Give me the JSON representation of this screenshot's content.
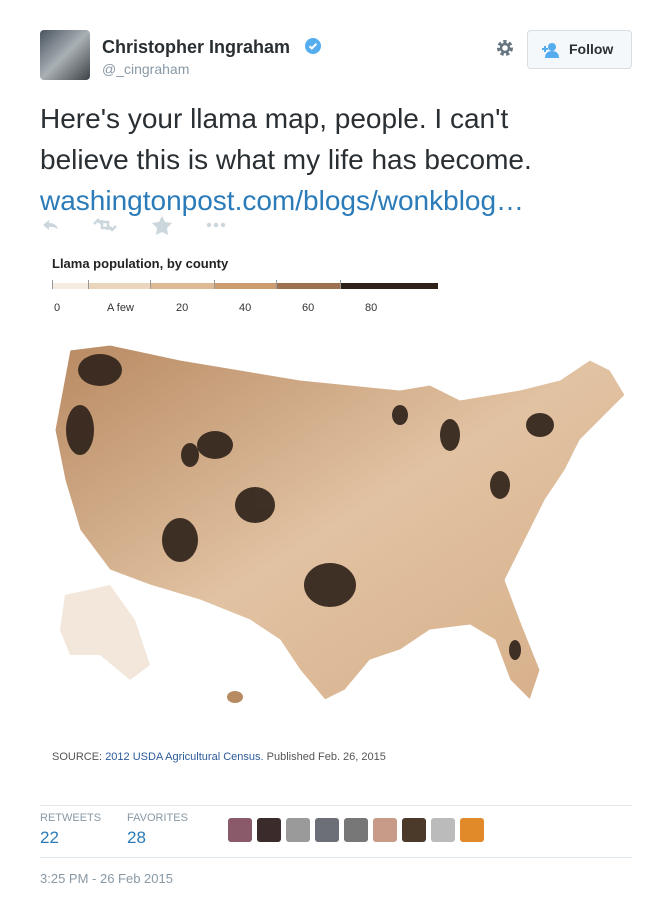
{
  "tweet": {
    "author_name": "Christopher Ingraham",
    "handle": "@_cingraham",
    "follow": "Follow",
    "text_lines": [
      "Here's your llama map, people. I can't",
      "believe this is what my life has become."
    ],
    "link": "washingtonpost.com/blogs/wonkblog…"
  },
  "map": {
    "title": "Llama population, by county",
    "legend_labels": [
      "0",
      "A few",
      "20",
      "40",
      "60",
      "80"
    ],
    "legend_colors": [
      "#f6ebe0",
      "#ecd5bd",
      "#ddb994",
      "#cc9c6f",
      "#9c7050",
      "#2e2119"
    ],
    "source_label": "SOURCE:",
    "source_link": "2012 USDA Agricultural Census.",
    "published": "Published Feb. 26, 2015"
  },
  "stats": {
    "retweets_label": "RETWEETS",
    "retweets": 22,
    "favorites_label": "FAVORITES",
    "favorites": 28
  },
  "timestamp": "3:25 PM - 26 Feb 2015"
}
